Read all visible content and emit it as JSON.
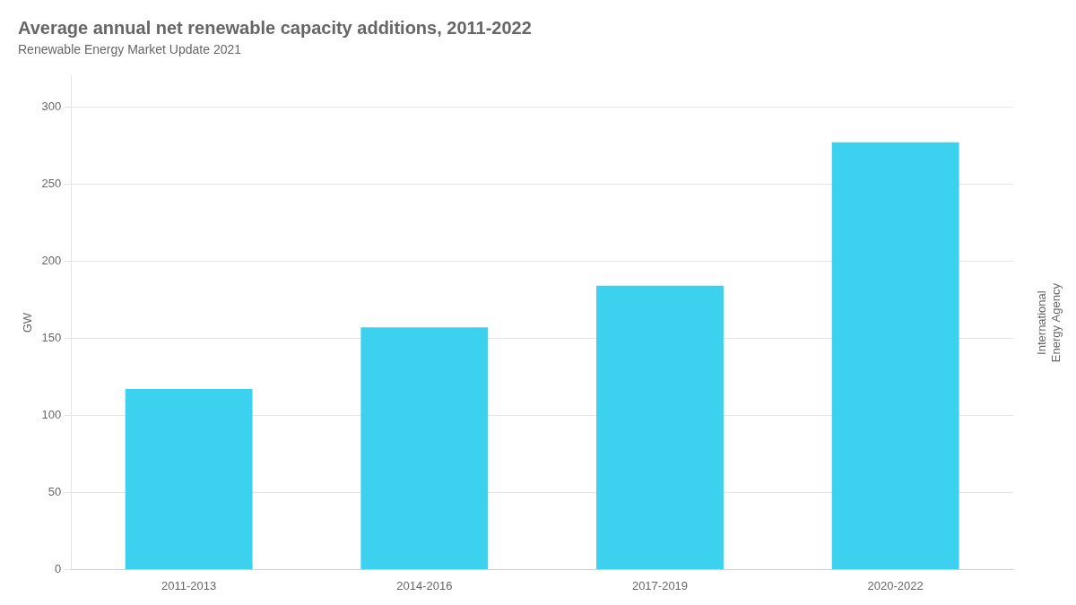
{
  "chart_data": {
    "type": "bar",
    "title": "Average annual net renewable capacity additions, 2011-2022",
    "subtitle": "Renewable Energy Market Update 2021",
    "ylabel": "GW",
    "categories": [
      "2011-2013",
      "2014-2016",
      "2017-2019",
      "2020-2022"
    ],
    "values": [
      117,
      157,
      184,
      277
    ],
    "color": "#3DD1F0",
    "ylim": [
      0,
      320
    ],
    "yticks": [
      0,
      50,
      100,
      150,
      200,
      250,
      300
    ],
    "grid": true,
    "annotations": [
      "International\nEnergy Agency"
    ]
  }
}
